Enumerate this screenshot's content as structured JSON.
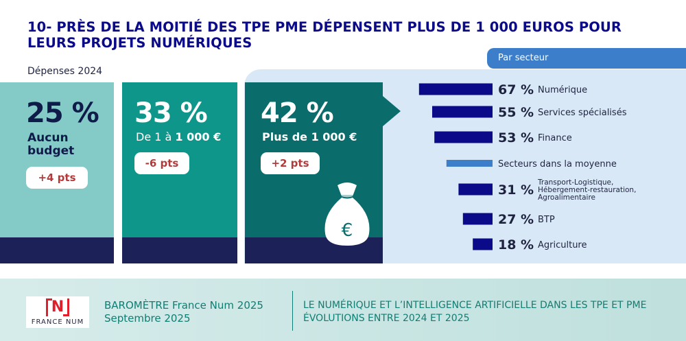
{
  "title": "10- PRÈS DE LA MOITIÉ DES TPE PME DÉPENSENT PLUS DE 1 000 EUROS POUR LEURS PROJETS NUMÉRIQUES",
  "subtitle": "Dépenses 2024",
  "sector_tab": "Par secteur",
  "categories": [
    {
      "pct": "25 %",
      "label": "Aucun budget",
      "delta": "+4 pts"
    },
    {
      "pct": "33 %",
      "label_prefix": "De 1 à ",
      "label_bold": "1 000 €",
      "delta": "-6 pts"
    },
    {
      "pct": "42 %",
      "label": "Plus de 1 000 €",
      "delta": "+2 pts"
    }
  ],
  "moneybag_symbol": "€",
  "colors": {
    "title": "#0b0b8a",
    "col_none": "#84cbc7",
    "col_low": "#0f968a",
    "col_high": "#0b6c6c",
    "band": "#1c2257",
    "panel": "#d9e8f7",
    "tab": "#3c7ec9",
    "bar": "#0b0b8a",
    "average": "#3c7ec9",
    "delta_text": "#b23a3a"
  },
  "chart_data": {
    "type": "bar",
    "title": "Par secteur",
    "orientation": "horizontal",
    "unit": "%",
    "categories": [
      "Numérique",
      "Services spécialisés",
      "Finance",
      "Secteurs dans la moyenne",
      "Transport-Logistique, Hébergement-restauration, Agroalimentaire",
      "BTP",
      "Agriculture"
    ],
    "values": [
      67,
      55,
      53,
      42,
      31,
      27,
      18
    ],
    "labels": [
      "67 %",
      "55 %",
      "53 %",
      "",
      "31 %",
      "27 %",
      "18 %"
    ],
    "category_lines": [
      [
        "Numérique"
      ],
      [
        "Services spécialisés"
      ],
      [
        "Finance"
      ],
      [
        "Secteurs dans la moyenne"
      ],
      [
        "Transport-Logistique,",
        "Hébergement-restauration,",
        "Agroalimentaire"
      ],
      [
        "BTP"
      ],
      [
        "Agriculture"
      ]
    ],
    "highlight": "Secteurs dans la moyenne",
    "grid": false,
    "legend": "none"
  },
  "footer": {
    "logo_text": "FRANCE NUM",
    "logo_mark": "N",
    "barometre_prefix": "BAROMÈTRE ",
    "barometre_name": "France Num 2025",
    "date": "Septembre 2025",
    "heading_line1": "LE NUMÉRIQUE ET L’INTELLIGENCE ARTIFICIELLE DANS LES TPE ET PME",
    "heading_line2": "ÉVOLUTIONS ENTRE 2024 ET 2025"
  }
}
